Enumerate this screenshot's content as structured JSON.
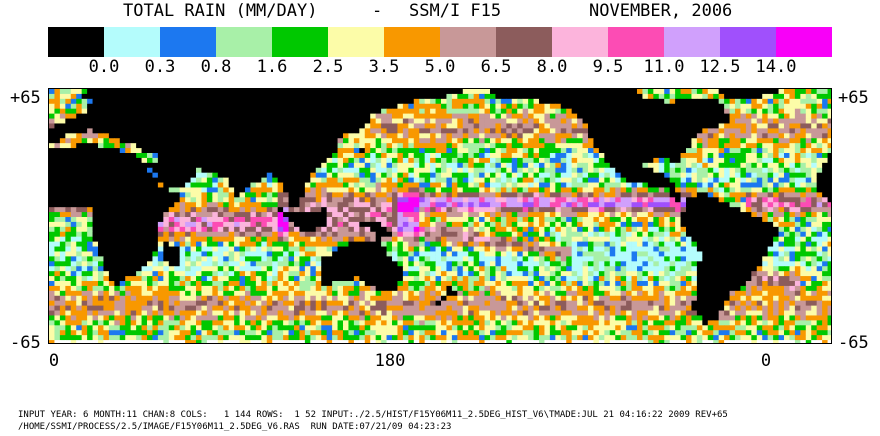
{
  "header": {
    "title_left": "TOTAL RAIN (MM/DAY)",
    "title_sep": "-",
    "title_sensor": "SSM/I F15",
    "title_date": "NOVEMBER, 2006"
  },
  "legend": {
    "colors": [
      "#000000",
      "#b4fcfc",
      "#1c78f0",
      "#a8f0a8",
      "#00c800",
      "#fcfca8",
      "#f89800",
      "#c89898",
      "#8c5c5c",
      "#fcb4dc",
      "#fc4cb4",
      "#d0a0fc",
      "#a050fc",
      "#f800f8"
    ],
    "labels": [
      "0.0",
      "0.3",
      "0.8",
      "1.6",
      "2.5",
      "3.5",
      "5.0",
      "6.5",
      "8.0",
      "9.5",
      "11.0",
      "12.5",
      "14.0"
    ]
  },
  "axes": {
    "lat_top_left": "+65",
    "lat_top_right": "+65",
    "lat_bottom_left": "-65",
    "lat_bottom_right": "-65",
    "lon_ticks": [
      "0",
      "180",
      "0"
    ]
  },
  "footer": {
    "line1": "INPUT YEAR: 6 MONTH:11 CHAN:8 COLS:   1 144 ROWS:  1 52 INPUT:./2.5/HIST/F15Y06M11_2.5DEG_HIST_V6\\TMADE:JUL 21 04:16:22 2009 REV+65",
    "line2": "/HOME/SSMI/PROCESS/2.5/IMAGE/F15Y06M11_2.5DEG_V6.RAS  RUN DATE:07/21/09 04:23:23"
  }
}
